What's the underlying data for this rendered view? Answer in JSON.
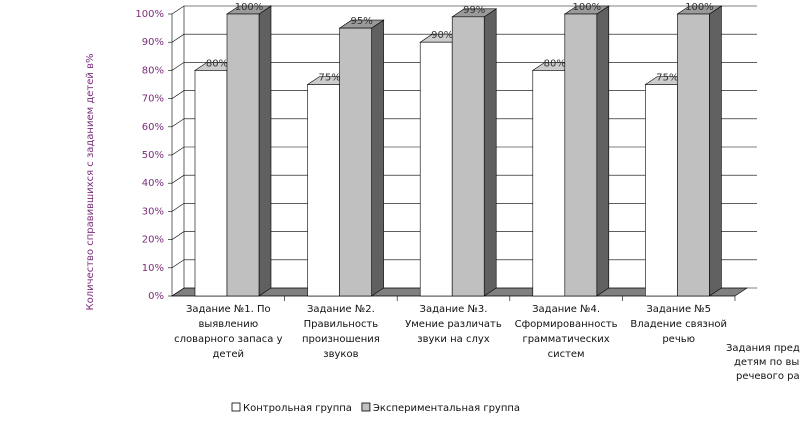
{
  "chart_data": {
    "type": "bar3d",
    "y_axis_label": "Количество справившихся с заданием детей в%",
    "x_axis_label_lines": [
      "Задания предл",
      "детям по вы",
      "речевого ра"
    ],
    "categories": [
      "Задание №1. По выявлению словарного запаса у детей",
      "Задание №2. Правильность произношения звуков",
      "Задание №3. Умение различать звуки на слух",
      "Задание №4. Сформированность грамматических систем",
      "Задание №5 Владение связной речью"
    ],
    "series": [
      {
        "name": "Контрольная группа",
        "color": "#ffffff",
        "values": [
          80,
          75,
          90,
          80,
          75
        ],
        "value_labels": [
          "80%",
          "75%",
          "90%",
          "80%",
          "75%"
        ]
      },
      {
        "name": "Экспериментальная группа",
        "color": "#c0c0c0",
        "values": [
          100,
          95,
          99,
          100,
          100
        ],
        "value_labels": [
          "100%",
          "95%",
          "99%",
          "100%",
          "100%"
        ]
      }
    ],
    "ylim": [
      0,
      100
    ],
    "yticks": [
      {
        "value": 0,
        "label": "0%"
      },
      {
        "value": 10,
        "label": "10%"
      },
      {
        "value": 20,
        "label": "20%"
      },
      {
        "value": 30,
        "label": "30%"
      },
      {
        "value": 40,
        "label": "40%"
      },
      {
        "value": 50,
        "label": "50%"
      },
      {
        "value": 60,
        "label": "60%"
      },
      {
        "value": 70,
        "label": "70%"
      },
      {
        "value": 80,
        "label": "80%"
      },
      {
        "value": 90,
        "label": "90%"
      },
      {
        "value": 100,
        "label": "100%"
      }
    ],
    "grid": true
  }
}
